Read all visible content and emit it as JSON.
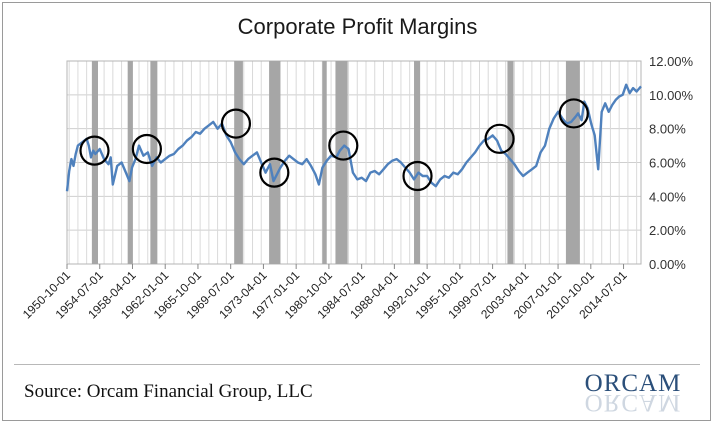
{
  "chart_data": {
    "type": "line",
    "title": "Corporate Profit Margins",
    "xlabel": "",
    "ylabel": "",
    "x_tick_labels": [
      "1950-10-01",
      "1954-07-01",
      "1958-04-01",
      "1962-01-01",
      "1965-10-01",
      "1969-07-01",
      "1973-04-01",
      "1977-01-01",
      "1980-10-01",
      "1984-07-01",
      "1988-04-01",
      "1992-01-01",
      "1995-10-01",
      "1999-07-01",
      "2003-04-01",
      "2007-01-01",
      "2010-10-01",
      "2014-07-01"
    ],
    "y_tick_labels": [
      "0.00%",
      "2.00%",
      "4.00%",
      "6.00%",
      "8.00%",
      "10.00%",
      "12.00%"
    ],
    "ylim": [
      0,
      12
    ],
    "xlim": [
      1950.75,
      2016.5
    ],
    "grid": true,
    "line_color": "#4f81bd",
    "recession_color": "#a6a6a6",
    "recession_periods": [
      [
        1953.6,
        1954.3
      ],
      [
        1957.7,
        1958.3
      ],
      [
        1960.3,
        1961.1
      ],
      [
        1969.9,
        1970.9
      ],
      [
        1973.9,
        1975.2
      ],
      [
        1980.0,
        1980.5
      ],
      [
        1981.5,
        1982.9
      ],
      [
        1990.5,
        1991.2
      ],
      [
        2001.2,
        2001.9
      ],
      [
        2007.9,
        2009.5
      ]
    ],
    "highlight_circles": [
      [
        1953.9,
        6.7
      ],
      [
        1959.9,
        6.8
      ],
      [
        1970.1,
        8.3
      ],
      [
        1974.5,
        5.4
      ],
      [
        1982.4,
        7.0
      ],
      [
        1990.9,
        5.2
      ],
      [
        2000.3,
        7.4
      ],
      [
        2008.8,
        8.9
      ]
    ],
    "series": [
      {
        "x": [
          1950.75,
          1951.0,
          1951.25,
          1951.5,
          1951.75,
          1952.0,
          1952.5,
          1953.0,
          1953.25,
          1953.5,
          1953.75,
          1954.0,
          1954.5,
          1955.0,
          1955.5,
          1955.75,
          1956.0,
          1956.5,
          1957.0,
          1957.5,
          1957.9,
          1958.2,
          1958.6,
          1959.0,
          1959.5,
          1960.0,
          1960.5,
          1961.0,
          1961.5,
          1962.0,
          1962.5,
          1963.0,
          1963.5,
          1964.0,
          1964.5,
          1965.0,
          1965.5,
          1966.0,
          1966.5,
          1967.0,
          1967.5,
          1968.0,
          1968.5,
          1969.0,
          1969.5,
          1970.0,
          1970.5,
          1971.0,
          1971.5,
          1972.0,
          1972.5,
          1973.0,
          1973.5,
          1974.0,
          1974.4,
          1974.8,
          1975.2,
          1975.7,
          1976.2,
          1976.7,
          1977.2,
          1977.7,
          1978.2,
          1978.7,
          1979.2,
          1979.6,
          1980.0,
          1980.5,
          1981.0,
          1981.6,
          1982.0,
          1982.5,
          1983.0,
          1983.5,
          1984.0,
          1984.5,
          1985.0,
          1985.5,
          1986.0,
          1986.5,
          1987.0,
          1987.5,
          1988.0,
          1988.5,
          1989.0,
          1989.5,
          1990.0,
          1990.5,
          1991.0,
          1991.5,
          1992.0,
          1992.5,
          1993.0,
          1993.5,
          1994.0,
          1994.5,
          1995.0,
          1995.5,
          1996.0,
          1996.5,
          1997.0,
          1997.5,
          1998.0,
          1998.5,
          1999.0,
          1999.5,
          2000.0,
          2000.5,
          2001.0,
          2001.5,
          2002.0,
          2002.5,
          2003.0,
          2003.5,
          2004.0,
          2004.5,
          2005.0,
          2005.5,
          2006.0,
          2006.5,
          2007.0,
          2007.5,
          2008.0,
          2008.5,
          2009.0,
          2009.3,
          2009.7,
          2010.0,
          2010.4,
          2010.8,
          2011.2,
          2011.6,
          2012.0,
          2012.4,
          2012.8,
          2013.2,
          2013.6,
          2014.0,
          2014.4,
          2014.8,
          2015.2,
          2015.6,
          2016.0,
          2016.5
        ],
        "y": [
          4.3,
          5.5,
          6.2,
          5.8,
          6.5,
          7.0,
          7.2,
          7.4,
          7.0,
          6.3,
          6.7,
          6.5,
          6.8,
          6.2,
          5.9,
          6.3,
          4.7,
          5.8,
          6.0,
          5.4,
          4.9,
          5.7,
          6.2,
          7.0,
          6.4,
          6.6,
          5.8,
          6.3,
          6.0,
          6.2,
          6.4,
          6.5,
          6.8,
          7.0,
          7.3,
          7.5,
          7.8,
          7.7,
          8.0,
          8.2,
          8.4,
          8.0,
          8.3,
          7.6,
          7.2,
          6.6,
          6.2,
          5.9,
          6.2,
          6.4,
          6.6,
          6.0,
          5.4,
          5.9,
          4.9,
          5.3,
          5.7,
          6.1,
          6.4,
          6.2,
          6.0,
          5.9,
          6.2,
          5.8,
          5.3,
          4.7,
          5.7,
          6.1,
          6.4,
          6.3,
          6.7,
          7.0,
          6.8,
          5.4,
          5.0,
          5.1,
          4.9,
          5.4,
          5.5,
          5.3,
          5.6,
          5.9,
          6.1,
          6.2,
          6.0,
          5.7,
          5.4,
          5.0,
          5.4,
          5.2,
          5.2,
          4.8,
          4.6,
          5.0,
          5.2,
          5.1,
          5.4,
          5.3,
          5.6,
          6.0,
          6.3,
          6.6,
          7.0,
          7.3,
          7.4,
          7.6,
          7.3,
          6.7,
          6.5,
          6.2,
          5.9,
          5.5,
          5.2,
          5.4,
          5.6,
          5.8,
          6.6,
          7.0,
          8.0,
          8.6,
          9.0,
          8.6,
          8.3,
          8.4,
          8.7,
          8.9,
          8.5,
          9.6,
          9.2,
          8.3,
          7.6,
          5.6,
          9.0,
          9.5,
          9.0,
          9.4,
          9.7,
          9.9,
          10.0,
          10.6,
          10.1,
          10.4,
          10.2,
          10.5
        ],
        "color": "#4f81bd"
      }
    ]
  },
  "source_text": "Source: Orcam Financial Group, LLC",
  "brand": "ORCAM"
}
